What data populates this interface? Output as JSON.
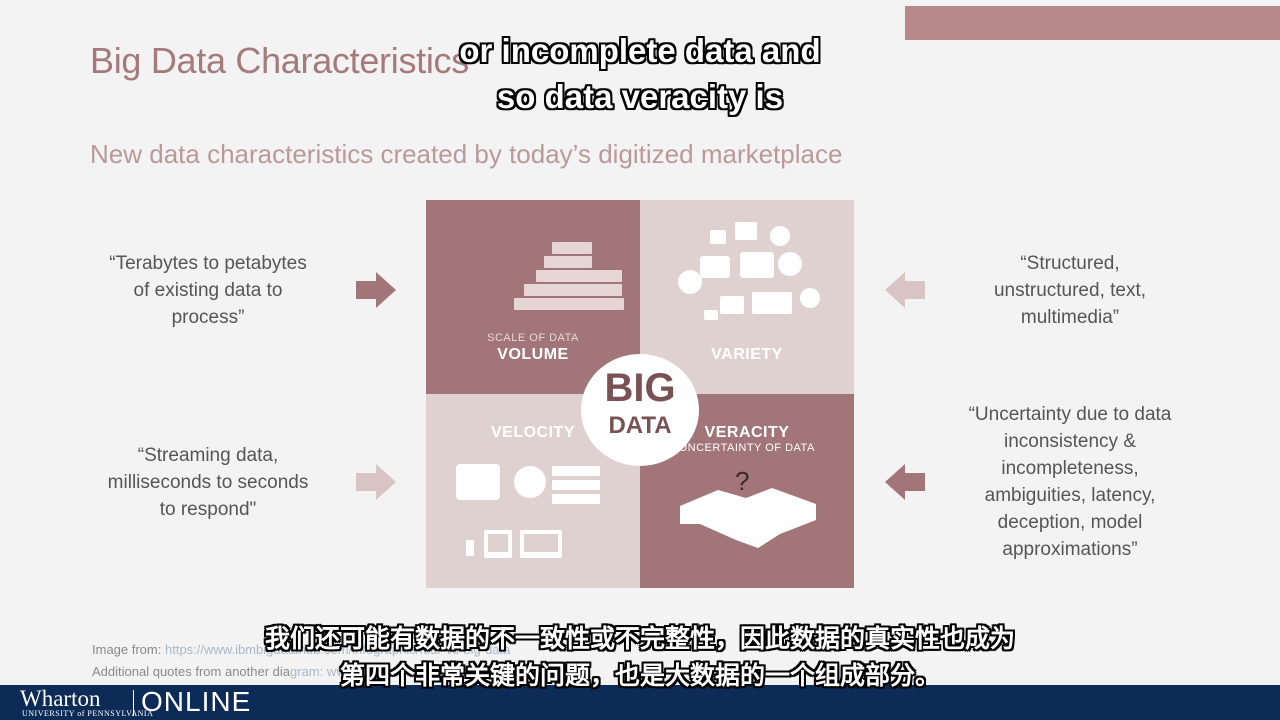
{
  "slide": {
    "title": "Big Data Characteristics",
    "subtitle": "New data characteristics created by today’s digitized marketplace"
  },
  "captions": {
    "top_line1": "or incomplete data and",
    "top_line2": "so data veracity is",
    "bottom_line1": "我们还可能有数据的不一致性或不完整性，因此数据的真实性也成为",
    "bottom_line2": "第四个非常关键的问题，也是大数据的一个组成部分。"
  },
  "diagram": {
    "center_line1": "BIG",
    "center_line2": "DATA",
    "volume": {
      "sub": "SCALE OF DATA",
      "label": "VOLUME"
    },
    "variety": {
      "label": "VARIETY"
    },
    "velocity": {
      "label": "VELOCITY"
    },
    "veracity": {
      "label": "VERACITY",
      "sub": "UNCERTAINTY OF DATA",
      "mark": "?"
    }
  },
  "quotes": {
    "volume": [
      "“Terabytes to petabytes",
      "of existing data to",
      "process”"
    ],
    "variety": [
      "“Structured,",
      "unstructured, text,",
      "multimedia”"
    ],
    "velocity": [
      "“Streaming data,",
      "milliseconds to seconds",
      "to respond\""
    ],
    "veracity": [
      "“Uncertainty due to data",
      "inconsistency &",
      "incompleteness,",
      "ambiguities, latency,",
      "deception, model",
      "approximations”"
    ]
  },
  "footer": {
    "image_from_label": "Image from:",
    "image_from_link": "https://www.ibmbigdatahub.com/infographic/four-vs-big-data",
    "additional_label": "Additional quotes from another dia",
    "additional_link": "gram: www.datasciencecentral.com"
  },
  "branding": {
    "name": "Wharton",
    "university": "UNIVERSITY of PENNSYLVANIA",
    "online": "ONLINE"
  },
  "colors": {
    "accent_dark": "#a27678",
    "accent_light": "#e0d1d1",
    "footer_navy": "#0d2b57"
  }
}
